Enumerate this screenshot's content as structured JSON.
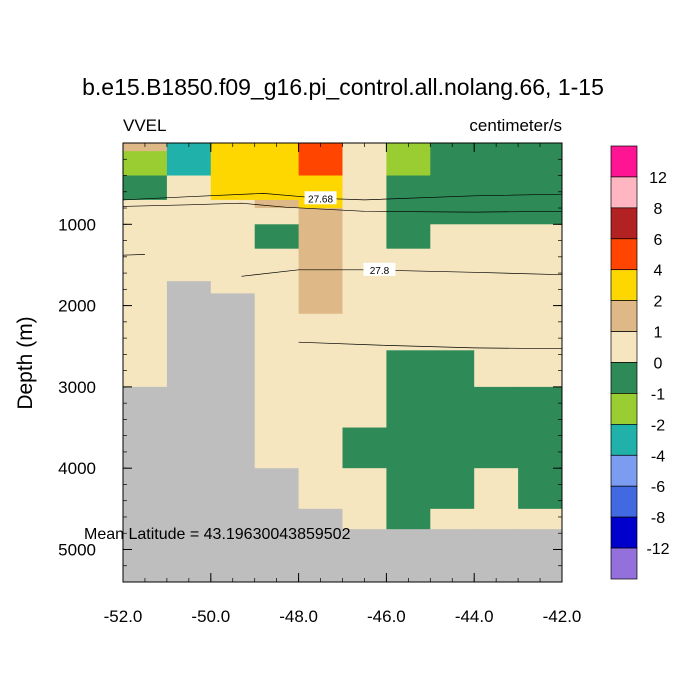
{
  "chart_data": {
    "type": "heatmap",
    "title": "b.e15.B1850.f09_g16.pi_control.all.nolang.66, 1-15",
    "left_label": "VVEL",
    "right_label": "centimeter/s",
    "ylabel": "Depth (m)",
    "xlabel": "",
    "xlim": [
      -52.0,
      -42.0
    ],
    "ylim": [
      0,
      5400
    ],
    "y_reversed": true,
    "x_ticks": [
      "-52.0",
      "-50.0",
      "-48.0",
      "-46.0",
      "-44.0",
      "-42.0"
    ],
    "y_ticks": [
      "1000",
      "2000",
      "3000",
      "4000",
      "5000"
    ],
    "annotation": "Mean Latitude = 43.19630043859502",
    "colorbar": {
      "labels": [
        "12",
        "8",
        "6",
        "4",
        "2",
        "1",
        "0",
        "-1",
        "-2",
        "-4",
        "-6",
        "-8",
        "-12"
      ],
      "colors": [
        "#ff1493",
        "#ffb6c1",
        "#b22222",
        "#ff4500",
        "#ffd700",
        "#deb887",
        "#f5e6c0",
        "#2e8b57",
        "#9acd32",
        "#20b2aa",
        "#7b9cf0",
        "#4169e1",
        "#0000cd",
        "#9370db"
      ]
    },
    "land_color": "#bebebe",
    "palette": {
      "P": "#f5e6c0",
      "G": "#2e8b57",
      "T": "#deb887",
      "Y": "#ffd700",
      "O": "#ff4500",
      "L": "#9acd32",
      "C": "#20b2aa",
      "X": "#bebebe"
    },
    "x_columns": [
      -52.0,
      -51.0,
      -50.0,
      -49.0,
      -48.0,
      -47.0,
      -46.0,
      -45.0,
      -44.0,
      -43.0,
      -42.0
    ],
    "y_rows": [
      0,
      100,
      400,
      700,
      800,
      1000,
      1300,
      1700,
      1850,
      2000,
      2100,
      2550,
      3000,
      3500,
      4000,
      4500,
      4750,
      5400
    ],
    "grid": [
      "TCYYOPLGGG",
      "LCYYOPLGGG",
      "GPYYYPGGGG",
      "PPPTYPGGGG",
      "PPPPTPGGGG",
      "PPPGTPGPPP",
      "PPPPTPPPPP",
      "PXPPTPPPPP",
      "PXXPTPPPPP",
      "PXXPTPPPPP",
      "PXXPPPPPPP",
      "PXXPPPGGPP",
      "XXXPPPGGGG",
      "XXXPPGGGGG",
      "XXXXPPGGPG",
      "XXXXXPGPPP",
      "XXXXXXXXXX"
    ],
    "contours": [
      {
        "label": "27.68",
        "points": [
          [
            -52.0,
            700
          ],
          [
            -50.5,
            660
          ],
          [
            -48.8,
            620
          ],
          [
            -47.5,
            680
          ],
          [
            -46.5,
            700
          ],
          [
            -44.0,
            650
          ],
          [
            -42.0,
            630
          ]
        ]
      },
      {
        "label": "",
        "points": [
          [
            -52.0,
            780
          ],
          [
            -50.5,
            760
          ],
          [
            -49.3,
            740
          ],
          [
            -48.3,
            790
          ],
          [
            -46.5,
            840
          ],
          [
            -44.0,
            850
          ],
          [
            -42.0,
            840
          ]
        ]
      },
      {
        "label": "",
        "points": [
          [
            -52.0,
            1380
          ],
          [
            -51.5,
            1370
          ]
        ]
      },
      {
        "label": "27.8",
        "points": [
          [
            -49.3,
            1640
          ],
          [
            -48.0,
            1560
          ],
          [
            -46.5,
            1560
          ],
          [
            -44.0,
            1590
          ],
          [
            -42.0,
            1620
          ]
        ]
      },
      {
        "label": "",
        "points": [
          [
            -48.0,
            2450
          ],
          [
            -46.0,
            2490
          ],
          [
            -44.0,
            2520
          ],
          [
            -42.0,
            2530
          ]
        ]
      }
    ]
  }
}
